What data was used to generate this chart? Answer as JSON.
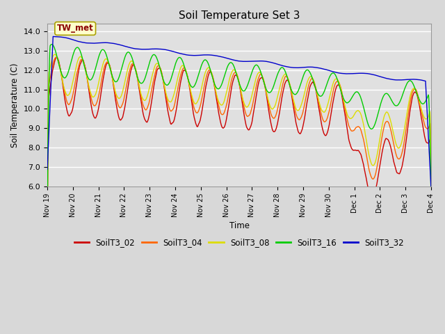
{
  "title": "Soil Temperature Set 3",
  "xlabel": "Time",
  "ylabel": "Soil Temperature (C)",
  "ylim": [
    6.0,
    14.4
  ],
  "yticks": [
    6.0,
    7.0,
    8.0,
    9.0,
    10.0,
    11.0,
    12.0,
    13.0,
    14.0
  ],
  "bg_color": "#d8d8d8",
  "plot_bg_color": "#e0e0e0",
  "annotation_text": "TW_met",
  "annotation_color": "#8B0000",
  "annotation_bg": "#ffffcc",
  "annotation_border": "#aaa000",
  "series_colors": {
    "SoilT3_02": "#cc0000",
    "SoilT3_04": "#ff6600",
    "SoilT3_08": "#dddd00",
    "SoilT3_16": "#00cc00",
    "SoilT3_32": "#0000cc"
  },
  "line_width": 1.0,
  "grid_color": "#ffffff",
  "tick_labels": [
    "Nov 19",
    "Nov 20",
    "Nov 21",
    "Nov 22",
    "Nov 23",
    "Nov 24",
    "Nov 25",
    "Nov 26",
    "Nov 27",
    "Nov 28",
    "Nov 29",
    "Nov 30",
    "Dec 1",
    "Dec 2",
    "Dec 3",
    "Dec 4"
  ],
  "legend_entries": [
    "SoilT3_02",
    "SoilT3_04",
    "SoilT3_08",
    "SoilT3_16",
    "SoilT3_32"
  ]
}
